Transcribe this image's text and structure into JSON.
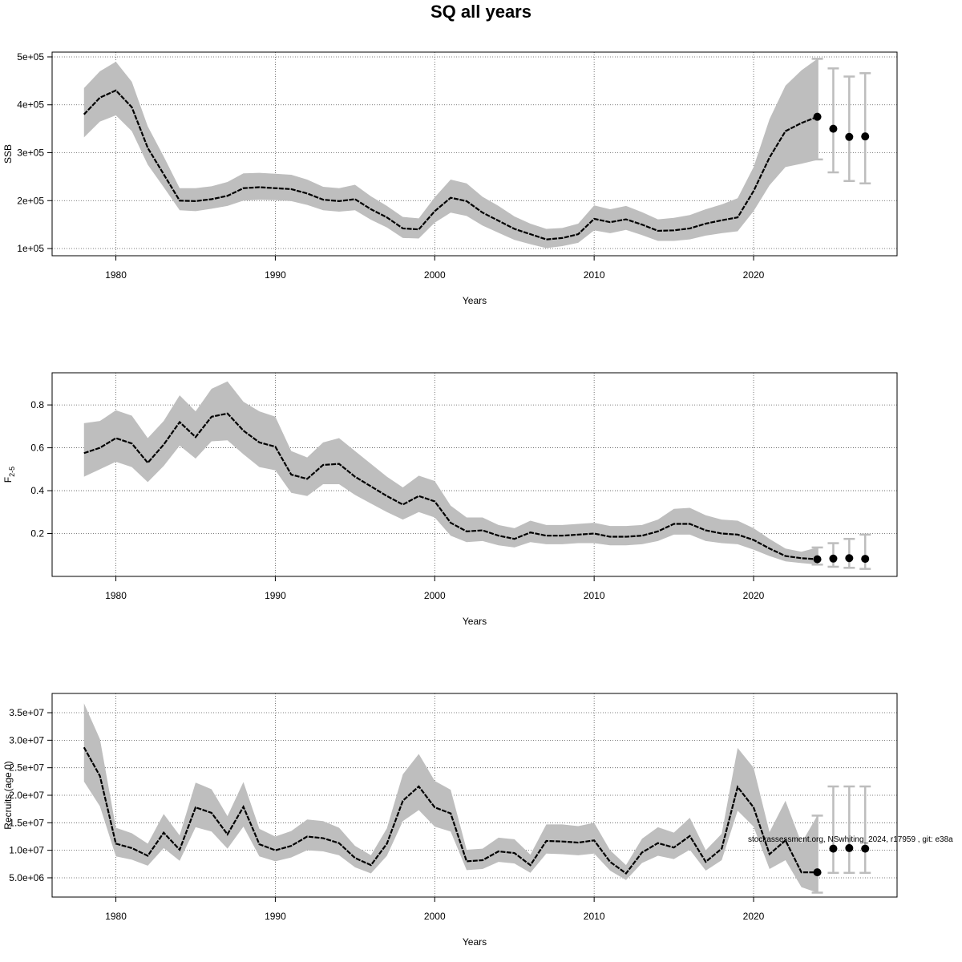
{
  "title": "SQ all years",
  "watermark": "stockassessment.org, NSwhiting_2024, r17959 , git: e38a",
  "colors": {
    "band": "#bebebe",
    "line": "#000000",
    "grid": "#555555",
    "error_bar": "#bdbdbd"
  },
  "chart_data": [
    {
      "type": "line",
      "panel": "ssb",
      "ylabel": "SSB",
      "xlabel": "Years",
      "xlim": [
        1976,
        2029
      ],
      "ylim": [
        85000,
        510000
      ],
      "xticks": [
        1980,
        1990,
        2000,
        2010,
        2020
      ],
      "yticks": [
        100000,
        200000,
        300000,
        400000,
        500000
      ],
      "ytick_labels": [
        "1e+05",
        "2e+05",
        "3e+05",
        "4e+05",
        "5e+05"
      ],
      "grid": true,
      "x": [
        1978,
        1979,
        1980,
        1981,
        1982,
        1983,
        1984,
        1985,
        1986,
        1987,
        1988,
        1989,
        1990,
        1991,
        1992,
        1993,
        1994,
        1995,
        1996,
        1997,
        1998,
        1999,
        2000,
        2001,
        2002,
        2003,
        2004,
        2005,
        2006,
        2007,
        2008,
        2009,
        2010,
        2011,
        2012,
        2013,
        2014,
        2015,
        2016,
        2017,
        2018,
        2019,
        2020,
        2021,
        2022,
        2023,
        2024
      ],
      "estimate": [
        380000,
        415000,
        430000,
        395000,
        310000,
        255000,
        200000,
        199000,
        203000,
        210000,
        226000,
        228000,
        226000,
        224000,
        215000,
        202000,
        199000,
        203000,
        182000,
        165000,
        142000,
        140000,
        178000,
        206000,
        199000,
        175000,
        158000,
        141000,
        130000,
        119000,
        122000,
        130000,
        162000,
        155000,
        161000,
        150000,
        137000,
        138000,
        142000,
        152000,
        159000,
        165000,
        220000,
        290000,
        345000,
        362000,
        375000
      ],
      "lower": [
        332000,
        365000,
        378000,
        345000,
        275000,
        228000,
        180000,
        178000,
        183000,
        189000,
        200000,
        202000,
        201000,
        199000,
        191000,
        180000,
        177000,
        180000,
        160000,
        144000,
        122000,
        121000,
        154000,
        175000,
        168000,
        148000,
        133000,
        118000,
        109000,
        101000,
        105000,
        112000,
        138000,
        132000,
        139000,
        128000,
        116000,
        116000,
        119000,
        127000,
        132000,
        136000,
        178000,
        232000,
        270000,
        277000,
        285000
      ],
      "upper": [
        435000,
        470000,
        490000,
        448000,
        355000,
        292000,
        226000,
        226000,
        230000,
        239000,
        257000,
        258000,
        256000,
        254000,
        244000,
        229000,
        226000,
        233000,
        209000,
        189000,
        166000,
        163000,
        207000,
        244000,
        236000,
        208000,
        189000,
        167000,
        152000,
        141000,
        143000,
        152000,
        190000,
        182000,
        189000,
        176000,
        161000,
        164000,
        170000,
        182000,
        192000,
        205000,
        270000,
        370000,
        440000,
        472000,
        496000
      ],
      "forecast": {
        "x": [
          2024,
          2025,
          2026,
          2027
        ],
        "median": [
          375000,
          350000,
          333000,
          334000
        ],
        "lower": [
          286000,
          259000,
          241000,
          236000
        ],
        "upper": [
          496000,
          476000,
          459000,
          466000
        ]
      }
    },
    {
      "type": "line",
      "panel": "f",
      "ylabel": "F",
      "ylabel_sub": "2-5",
      "xlabel": "Years",
      "xlim": [
        1976,
        2029
      ],
      "ylim": [
        0.0,
        0.95
      ],
      "xticks": [
        1980,
        1990,
        2000,
        2010,
        2020
      ],
      "yticks": [
        0.2,
        0.4,
        0.6,
        0.8
      ],
      "ytick_labels": [
        "0.2",
        "0.4",
        "0.6",
        "0.8"
      ],
      "grid": true,
      "x": [
        1978,
        1979,
        1980,
        1981,
        1982,
        1983,
        1984,
        1985,
        1986,
        1987,
        1988,
        1989,
        1990,
        1991,
        1992,
        1993,
        1994,
        1995,
        1996,
        1997,
        1998,
        1999,
        2000,
        2001,
        2002,
        2003,
        2004,
        2005,
        2006,
        2007,
        2008,
        2009,
        2010,
        2011,
        2012,
        2013,
        2014,
        2015,
        2016,
        2017,
        2018,
        2019,
        2020,
        2021,
        2022,
        2023,
        2024
      ],
      "estimate": [
        0.575,
        0.6,
        0.645,
        0.62,
        0.53,
        0.615,
        0.72,
        0.65,
        0.745,
        0.76,
        0.68,
        0.625,
        0.605,
        0.475,
        0.455,
        0.52,
        0.525,
        0.465,
        0.42,
        0.375,
        0.335,
        0.375,
        0.35,
        0.25,
        0.21,
        0.215,
        0.19,
        0.175,
        0.205,
        0.19,
        0.19,
        0.195,
        0.2,
        0.185,
        0.185,
        0.19,
        0.21,
        0.245,
        0.245,
        0.215,
        0.2,
        0.195,
        0.17,
        0.13,
        0.095,
        0.085,
        0.08
      ],
      "lower": [
        0.465,
        0.5,
        0.535,
        0.51,
        0.44,
        0.515,
        0.61,
        0.55,
        0.63,
        0.635,
        0.57,
        0.51,
        0.495,
        0.39,
        0.375,
        0.43,
        0.43,
        0.38,
        0.34,
        0.3,
        0.265,
        0.3,
        0.275,
        0.19,
        0.16,
        0.165,
        0.145,
        0.135,
        0.16,
        0.15,
        0.15,
        0.155,
        0.155,
        0.145,
        0.145,
        0.15,
        0.165,
        0.195,
        0.195,
        0.165,
        0.155,
        0.15,
        0.125,
        0.095,
        0.07,
        0.062,
        0.055
      ],
      "upper": [
        0.715,
        0.725,
        0.775,
        0.75,
        0.645,
        0.725,
        0.845,
        0.77,
        0.875,
        0.91,
        0.815,
        0.77,
        0.745,
        0.585,
        0.555,
        0.625,
        0.645,
        0.585,
        0.525,
        0.465,
        0.415,
        0.47,
        0.445,
        0.33,
        0.275,
        0.275,
        0.24,
        0.225,
        0.26,
        0.24,
        0.24,
        0.245,
        0.25,
        0.235,
        0.235,
        0.24,
        0.265,
        0.315,
        0.32,
        0.285,
        0.265,
        0.26,
        0.225,
        0.175,
        0.13,
        0.115,
        0.135
      ],
      "forecast": {
        "x": [
          2024,
          2025,
          2026,
          2027
        ],
        "median": [
          0.08,
          0.083,
          0.085,
          0.082
        ],
        "lower": [
          0.055,
          0.045,
          0.04,
          0.035
        ],
        "upper": [
          0.135,
          0.155,
          0.175,
          0.195
        ]
      }
    },
    {
      "type": "line",
      "panel": "recruits",
      "ylabel": "Recruits (age 0)",
      "xlabel": "Years",
      "xlim": [
        1976,
        2029
      ],
      "ylim": [
        1500000,
        38500000
      ],
      "xticks": [
        1980,
        1990,
        2000,
        2010,
        2020
      ],
      "yticks": [
        5000000,
        10000000,
        15000000,
        20000000,
        25000000,
        30000000,
        35000000
      ],
      "ytick_labels": [
        "5.0e+06",
        "1.0e+07",
        "1.5e+07",
        "2.0e+07",
        "2.5e+07",
        "3.0e+07",
        "3.5e+07"
      ],
      "grid": true,
      "x": [
        1978,
        1979,
        1980,
        1981,
        1982,
        1983,
        1984,
        1985,
        1986,
        1987,
        1988,
        1989,
        1990,
        1991,
        1992,
        1993,
        1994,
        1995,
        1996,
        1997,
        1998,
        1999,
        2000,
        2001,
        2002,
        2003,
        2004,
        2005,
        2006,
        2007,
        2008,
        2009,
        2010,
        2011,
        2012,
        2013,
        2014,
        2015,
        2016,
        2017,
        2018,
        2019,
        2020,
        2021,
        2022,
        2023,
        2024
      ],
      "estimate": [
        28700000,
        23500000,
        11200000,
        10400000,
        9000000,
        13200000,
        10100000,
        17800000,
        16800000,
        12900000,
        17900000,
        11100000,
        10000000,
        10800000,
        12500000,
        12200000,
        11300000,
        8600000,
        7300000,
        11200000,
        19000000,
        21600000,
        17800000,
        16700000,
        8000000,
        8200000,
        9800000,
        9500000,
        7300000,
        11700000,
        11600000,
        11400000,
        11800000,
        7900000,
        5800000,
        9600000,
        11300000,
        10500000,
        12600000,
        7900000,
        10300000,
        21500000,
        17800000,
        9300000,
        11800000,
        6000000,
        6000000
      ],
      "lower": [
        22500000,
        18000000,
        8900000,
        8300000,
        7200000,
        10400000,
        8100000,
        14200000,
        13400000,
        10300000,
        14300000,
        8900000,
        8000000,
        8700000,
        10000000,
        9800000,
        9100000,
        6900000,
        5800000,
        9000000,
        15300000,
        17300000,
        14300000,
        13400000,
        6400000,
        6600000,
        7900000,
        7600000,
        5900000,
        9400000,
        9300000,
        9100000,
        9400000,
        6300000,
        4600000,
        7700000,
        9000000,
        8400000,
        10100000,
        6300000,
        8200000,
        17200000,
        14300000,
        6600000,
        8200000,
        3300000,
        2300000
      ],
      "upper": [
        36700000,
        30200000,
        14100000,
        13100000,
        11200000,
        16600000,
        12700000,
        22300000,
        21100000,
        16200000,
        22400000,
        13900000,
        12500000,
        13500000,
        15600000,
        15300000,
        14100000,
        10800000,
        9100000,
        14000000,
        23800000,
        27500000,
        22600000,
        21000000,
        10100000,
        10300000,
        12300000,
        12000000,
        9200000,
        14700000,
        14700000,
        14400000,
        15000000,
        10000000,
        7300000,
        12100000,
        14200000,
        13200000,
        15900000,
        10000000,
        13000000,
        28600000,
        25000000,
        13300000,
        19000000,
        11300000,
        16300000
      ],
      "forecast": {
        "x": [
          2024,
          2025,
          2026,
          2027
        ],
        "median": [
          6000000,
          10300000,
          10400000,
          10300000
        ],
        "lower": [
          2300000,
          5900000,
          5900000,
          5900000
        ],
        "upper": [
          16300000,
          21600000,
          21600000,
          21600000
        ]
      }
    }
  ]
}
